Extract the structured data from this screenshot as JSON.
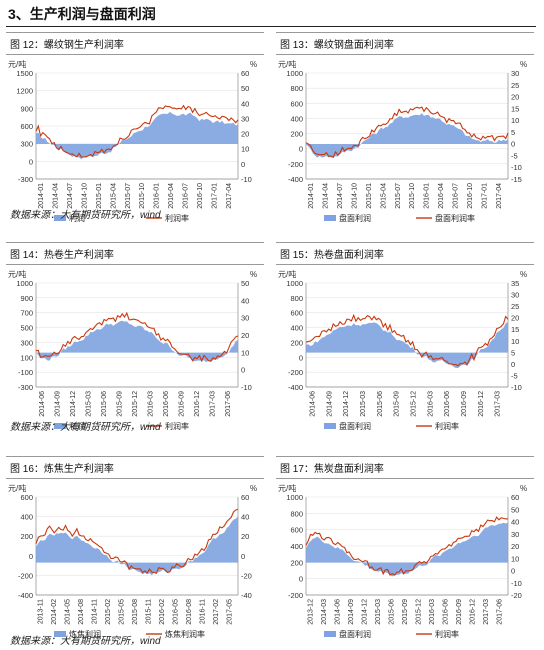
{
  "section_title": "3、生产利润与盘面利润",
  "source_note": "数据来源：大有期货研究所，wind",
  "colors": {
    "bar": "#7ea3e0",
    "line": "#c8380f"
  },
  "charts": [
    {
      "caption": "图 12：螺纹钢生产利润率",
      "left_unit": "元/吨",
      "right_unit": "%",
      "left_ticks": [
        "1500",
        "1200",
        "900",
        "600",
        "300",
        "0",
        "-300"
      ],
      "right_ticks": [
        "60",
        "50",
        "40",
        "30",
        "20",
        "10",
        "0",
        "-10"
      ],
      "x_labels": [
        "2014-01",
        "2014-04",
        "2014-07",
        "2014-10",
        "2015-01",
        "2015-04",
        "2015-07",
        "2015-10",
        "2016-01",
        "2016-04",
        "2016-07",
        "2016-10",
        "2017-01",
        "2017-04"
      ],
      "legend": [
        "利润",
        "利润率"
      ]
    },
    {
      "caption": "图 13：螺纹钢盘面利润率",
      "left_unit": "元/吨",
      "right_unit": "%",
      "left_ticks": [
        "1000",
        "800",
        "600",
        "400",
        "200",
        "0",
        "-200",
        "-400"
      ],
      "right_ticks": [
        "30",
        "25",
        "20",
        "15",
        "10",
        "5",
        "0",
        "-5",
        "-10",
        "-15"
      ],
      "x_labels": [
        "2014-01",
        "2014-04",
        "2014-07",
        "2014-10",
        "2015-01",
        "2015-04",
        "2015-07",
        "2015-10",
        "2016-01",
        "2016-04",
        "2016-07",
        "2016-10",
        "2017-01",
        "2017-04"
      ],
      "legend": [
        "盘面利润",
        "盘面利润率"
      ]
    },
    {
      "caption": "图 14：热卷生产利润率",
      "left_unit": "元/吨",
      "right_unit": "%",
      "left_ticks": [
        "1000",
        "900",
        "700",
        "500",
        "300",
        "100",
        "-100",
        "-300"
      ],
      "right_ticks": [
        "50",
        "40",
        "30",
        "20",
        "10",
        "0",
        "-10"
      ],
      "x_labels": [
        "2014-06",
        "2014-09",
        "2014-12",
        "2015-03",
        "2015-06",
        "2015-09",
        "2015-12",
        "2016-03",
        "2016-06",
        "2016-09",
        "2016-12",
        "2017-03",
        "2017-06"
      ],
      "legend": [
        "利润",
        "利润率"
      ]
    },
    {
      "caption": "图 15：热卷盘面利润率",
      "left_unit": "元/吨",
      "right_unit": "%",
      "left_ticks": [
        "1000",
        "800",
        "600",
        "400",
        "200",
        "0",
        "-200",
        "-400"
      ],
      "right_ticks": [
        "35",
        "30",
        "25",
        "20",
        "15",
        "10",
        "5",
        "0",
        "-5",
        "-10"
      ],
      "x_labels": [
        "2014-06",
        "2014-09",
        "2014-12",
        "2015-03",
        "2015-06",
        "2015-09",
        "2015-12",
        "2016-03",
        "2016-06",
        "2016-09",
        "2016-12",
        "2017-03"
      ],
      "legend": [
        "盘面利润",
        "利润率"
      ]
    },
    {
      "caption": "图 16：炼焦生产利润率",
      "left_unit": "元/吨",
      "right_unit": "%",
      "left_ticks": [
        "600",
        "400",
        "200",
        "0",
        "-200",
        "-400"
      ],
      "right_ticks": [
        "60",
        "40",
        "20",
        "0",
        "-20",
        "-40"
      ],
      "x_labels": [
        "2013-11",
        "2014-02",
        "2014-05",
        "2014-08",
        "2014-11",
        "2015-02",
        "2015-05",
        "2015-08",
        "2015-11",
        "2016-02",
        "2016-05",
        "2016-08",
        "2016-11",
        "2017-02",
        "2017-05"
      ],
      "legend": [
        "炼焦利润",
        "炼焦利润率"
      ]
    },
    {
      "caption": "图 17：焦炭盘面利润率",
      "left_unit": "元/吨",
      "right_unit": "%",
      "left_ticks": [
        "1000",
        "800",
        "600",
        "400",
        "200",
        "0",
        "-200"
      ],
      "right_ticks": [
        "60",
        "50",
        "40",
        "30",
        "20",
        "10",
        "0",
        "-10",
        "-20"
      ],
      "x_labels": [
        "2013-12",
        "2014-03",
        "2014-06",
        "2014-09",
        "2014-12",
        "2015-03",
        "2015-06",
        "2015-09",
        "2015-12",
        "2016-03",
        "2016-06",
        "2016-09",
        "2016-12",
        "2017-03",
        "2017-06"
      ],
      "legend": [
        "盘面利润",
        "利润率"
      ]
    }
  ]
}
